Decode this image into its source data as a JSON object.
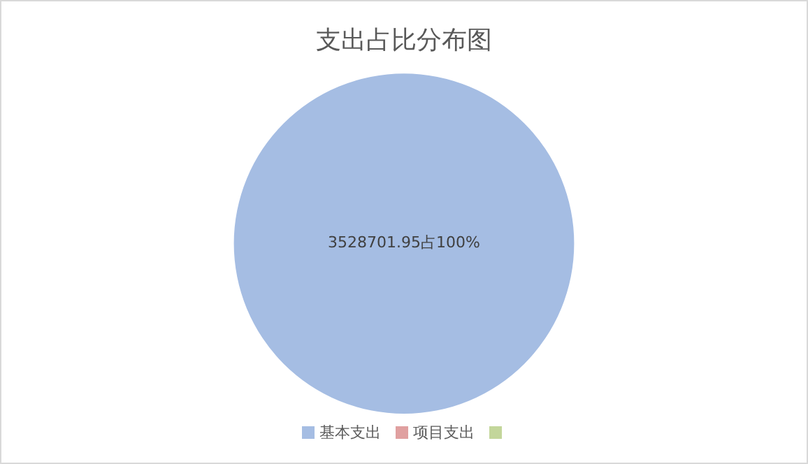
{
  "chart_data": {
    "type": "pie",
    "title": "支出占比分布图",
    "categories": [
      "基本支出",
      "项目支出",
      null
    ],
    "values": [
      3528701.95,
      0,
      0
    ],
    "colors": [
      "#a5bde3",
      "#e0a0a0",
      "#c3d69b"
    ],
    "value_labels": [
      "3528701.95占100%",
      null,
      null
    ],
    "legend": "bottom"
  }
}
